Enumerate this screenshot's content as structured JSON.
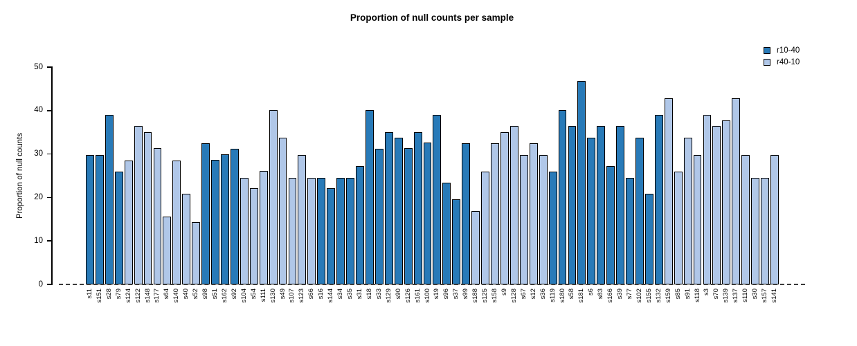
{
  "title": "Proportion of null counts per sample",
  "legend": {
    "items": [
      {
        "label": "r10-40",
        "color": "#287ab8"
      },
      {
        "label": "r40-10",
        "color": "#b0c7e8"
      }
    ]
  },
  "axes": {
    "ylabel": "Proportion of null counts",
    "ytick_labels": [
      "0",
      "10",
      "20",
      "30",
      "40",
      "50"
    ]
  },
  "chart_data": {
    "type": "bar",
    "title": "Proportion of null counts per sample",
    "xlabel": "",
    "ylabel": "Proportion of null counts",
    "ylim": [
      0,
      50
    ],
    "yticks": [
      0,
      10,
      20,
      30,
      40,
      50
    ],
    "grid": false,
    "legend_position": "top-right",
    "zero_line_style": "dashed",
    "series": [
      {
        "name": "r10-40",
        "color": "#287ab8"
      },
      {
        "name": "r40-10",
        "color": "#b0c7e8"
      }
    ],
    "bars": [
      {
        "sample": "s11",
        "value": 29.8,
        "group": "r10-40"
      },
      {
        "sample": "s151",
        "value": 29.8,
        "group": "r10-40"
      },
      {
        "sample": "s28",
        "value": 39.0,
        "group": "r10-40"
      },
      {
        "sample": "s79",
        "value": 26.0,
        "group": "r10-40"
      },
      {
        "sample": "s124",
        "value": 28.5,
        "group": "r40-10"
      },
      {
        "sample": "s122",
        "value": 36.4,
        "group": "r40-10"
      },
      {
        "sample": "s148",
        "value": 35.0,
        "group": "r40-10"
      },
      {
        "sample": "s177",
        "value": 31.3,
        "group": "r40-10"
      },
      {
        "sample": "s64",
        "value": 15.6,
        "group": "r40-10"
      },
      {
        "sample": "s140",
        "value": 28.5,
        "group": "r40-10"
      },
      {
        "sample": "s40",
        "value": 20.8,
        "group": "r40-10"
      },
      {
        "sample": "s52",
        "value": 14.3,
        "group": "r40-10"
      },
      {
        "sample": "s98",
        "value": 32.5,
        "group": "r10-40"
      },
      {
        "sample": "s51",
        "value": 28.6,
        "group": "r10-40"
      },
      {
        "sample": "s162",
        "value": 29.9,
        "group": "r10-40"
      },
      {
        "sample": "s92",
        "value": 31.2,
        "group": "r10-40"
      },
      {
        "sample": "s104",
        "value": 24.6,
        "group": "r40-10"
      },
      {
        "sample": "s54",
        "value": 22.1,
        "group": "r40-10"
      },
      {
        "sample": "s111",
        "value": 26.1,
        "group": "r40-10"
      },
      {
        "sample": "s130",
        "value": 40.2,
        "group": "r40-10"
      },
      {
        "sample": "s49",
        "value": 33.8,
        "group": "r40-10"
      },
      {
        "sample": "s107",
        "value": 24.6,
        "group": "r40-10"
      },
      {
        "sample": "s123",
        "value": 29.8,
        "group": "r40-10"
      },
      {
        "sample": "s66",
        "value": 24.6,
        "group": "r40-10"
      },
      {
        "sample": "s16",
        "value": 24.6,
        "group": "r10-40"
      },
      {
        "sample": "s144",
        "value": 22.1,
        "group": "r10-40"
      },
      {
        "sample": "s34",
        "value": 24.6,
        "group": "r10-40"
      },
      {
        "sample": "s35",
        "value": 24.6,
        "group": "r10-40"
      },
      {
        "sample": "s31",
        "value": 27.3,
        "group": "r10-40"
      },
      {
        "sample": "s18",
        "value": 40.2,
        "group": "r10-40"
      },
      {
        "sample": "s33",
        "value": 31.2,
        "group": "r10-40"
      },
      {
        "sample": "s129",
        "value": 35.1,
        "group": "r10-40"
      },
      {
        "sample": "s90",
        "value": 33.8,
        "group": "r10-40"
      },
      {
        "sample": "s126",
        "value": 31.3,
        "group": "r10-40"
      },
      {
        "sample": "s161",
        "value": 35.0,
        "group": "r10-40"
      },
      {
        "sample": "s100",
        "value": 32.6,
        "group": "r10-40"
      },
      {
        "sample": "s19",
        "value": 39.0,
        "group": "r10-40"
      },
      {
        "sample": "s96",
        "value": 23.4,
        "group": "r10-40"
      },
      {
        "sample": "s37",
        "value": 19.6,
        "group": "r10-40"
      },
      {
        "sample": "s99",
        "value": 32.5,
        "group": "r10-40"
      },
      {
        "sample": "s188",
        "value": 16.9,
        "group": "r40-10"
      },
      {
        "sample": "s125",
        "value": 26.0,
        "group": "r40-10"
      },
      {
        "sample": "s158",
        "value": 32.5,
        "group": "r40-10"
      },
      {
        "sample": "s9",
        "value": 35.0,
        "group": "r40-10"
      },
      {
        "sample": "s128",
        "value": 36.5,
        "group": "r40-10"
      },
      {
        "sample": "s67",
        "value": 29.8,
        "group": "r40-10"
      },
      {
        "sample": "s12",
        "value": 32.5,
        "group": "r40-10"
      },
      {
        "sample": "s36",
        "value": 29.8,
        "group": "r40-10"
      },
      {
        "sample": "s119",
        "value": 26.0,
        "group": "r10-40"
      },
      {
        "sample": "s180",
        "value": 40.2,
        "group": "r10-40"
      },
      {
        "sample": "s58",
        "value": 36.5,
        "group": "r10-40"
      },
      {
        "sample": "s181",
        "value": 46.8,
        "group": "r10-40"
      },
      {
        "sample": "s6",
        "value": 33.8,
        "group": "r10-40"
      },
      {
        "sample": "s83",
        "value": 36.5,
        "group": "r10-40"
      },
      {
        "sample": "s166",
        "value": 27.3,
        "group": "r10-40"
      },
      {
        "sample": "s39",
        "value": 36.5,
        "group": "r10-40"
      },
      {
        "sample": "s77",
        "value": 24.6,
        "group": "r10-40"
      },
      {
        "sample": "s102",
        "value": 33.8,
        "group": "r10-40"
      },
      {
        "sample": "s155",
        "value": 20.9,
        "group": "r10-40"
      },
      {
        "sample": "s132",
        "value": 39.0,
        "group": "r10-40"
      },
      {
        "sample": "s159",
        "value": 42.8,
        "group": "r40-10"
      },
      {
        "sample": "s85",
        "value": 26.0,
        "group": "r40-10"
      },
      {
        "sample": "s91",
        "value": 33.8,
        "group": "r40-10"
      },
      {
        "sample": "s118",
        "value": 29.8,
        "group": "r40-10"
      },
      {
        "sample": "s3",
        "value": 39.0,
        "group": "r40-10"
      },
      {
        "sample": "s70",
        "value": 36.5,
        "group": "r40-10"
      },
      {
        "sample": "s139",
        "value": 37.8,
        "group": "r40-10"
      },
      {
        "sample": "s137",
        "value": 42.8,
        "group": "r40-10"
      },
      {
        "sample": "s110",
        "value": 29.8,
        "group": "r40-10"
      },
      {
        "sample": "s30",
        "value": 24.6,
        "group": "r40-10"
      },
      {
        "sample": "s157",
        "value": 24.6,
        "group": "r40-10"
      },
      {
        "sample": "s141",
        "value": 29.8,
        "group": "r40-10"
      }
    ]
  }
}
